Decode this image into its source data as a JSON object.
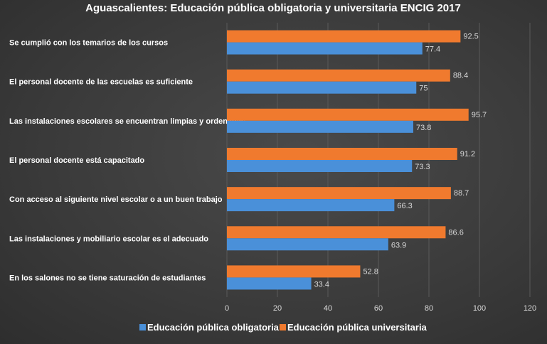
{
  "chart_data": {
    "type": "bar",
    "orientation": "horizontal",
    "title": "Aguascalientes: Educación pública obligatoria y universitaria ENCIG 2017",
    "categories": [
      "Se cumplió con los temarios de los cursos",
      "El personal docente de las escuelas es suficiente",
      "Las instalaciones escolares se encuentran limpias y ordenadas",
      "El personal docente está  capacitado",
      "Con acceso al siguiente nivel escolar o a un buen trabajo",
      "Las instalaciones y mobiliario escolar es el adecuado",
      "En los salones no se tiene saturación de estudiantes"
    ],
    "series": [
      {
        "name": "Educación pública obligatoria",
        "color": "#4a90d9",
        "values": [
          77.4,
          75,
          73.8,
          73.3,
          66.3,
          63.9,
          33.4
        ],
        "labels": [
          "77.4",
          "75",
          "73.8",
          "73.3",
          "66.3",
          "63.9",
          "33.4"
        ]
      },
      {
        "name": "Educación pública universitaria",
        "color": "#f07a2e",
        "values": [
          92.5,
          88.4,
          95.7,
          91.2,
          88.7,
          86.6,
          52.8
        ],
        "labels": [
          "92.5",
          "88.4",
          "95.7",
          "91.2",
          "88.7",
          "86.6",
          "52.8"
        ]
      }
    ],
    "xlim": [
      0,
      120
    ],
    "xticks": [
      "0",
      "20",
      "40",
      "60",
      "80",
      "100",
      "120"
    ],
    "grid": true,
    "legend": "bottom"
  }
}
